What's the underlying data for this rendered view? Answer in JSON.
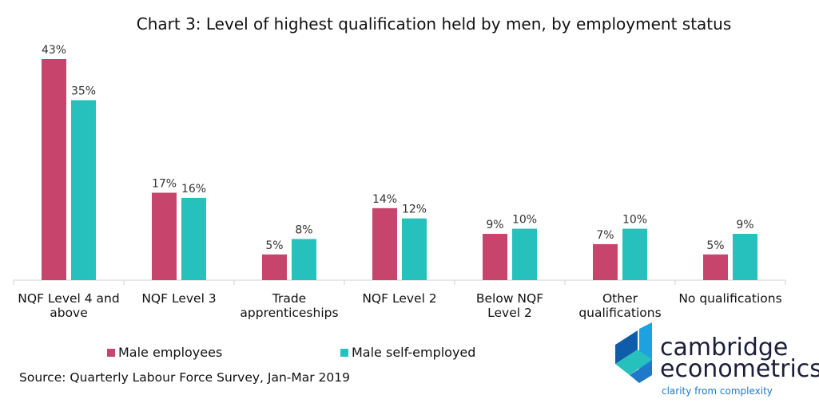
{
  "chart_data": {
    "type": "bar",
    "title": "Chart 3: Level of highest qualification held by men, by employment status",
    "categories": [
      [
        "NQF Level 4 and",
        "above"
      ],
      [
        "NQF Level 3"
      ],
      [
        "Trade",
        "apprenticeships"
      ],
      [
        "NQF Level 2"
      ],
      [
        "Below NQF",
        "Level 2"
      ],
      [
        "Other",
        "qualifications"
      ],
      [
        "No qualifications"
      ]
    ],
    "series": [
      {
        "name": "Male employees",
        "color": "#c7456c",
        "values": [
          43,
          17,
          5,
          14,
          9,
          7,
          5
        ]
      },
      {
        "name": "Male self-employed",
        "color": "#26c0bd",
        "values": [
          35,
          16,
          8,
          12,
          10,
          10,
          9
        ]
      }
    ],
    "value_suffix": "%",
    "ylim": [
      0,
      43
    ],
    "grid": false,
    "legend_position": "bottom-left",
    "source": "Source: Quarterly Labour Force Survey, Jan-Mar 2019"
  },
  "logo": {
    "name_line1": "cambridge",
    "name_line2": "econometrics",
    "tagline": "clarity from complexity"
  }
}
